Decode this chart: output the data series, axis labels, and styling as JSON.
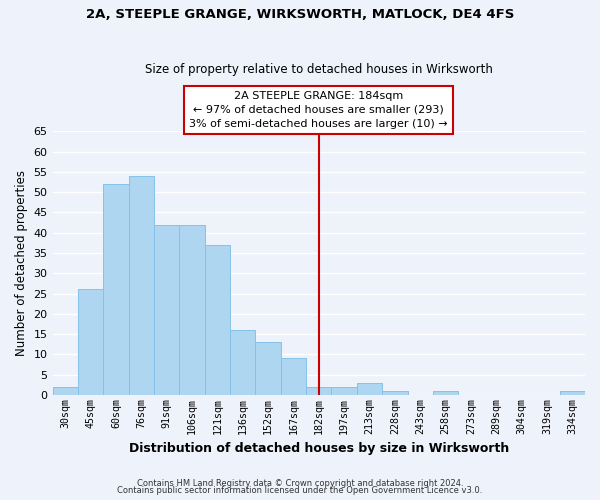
{
  "title": "2A, STEEPLE GRANGE, WIRKSWORTH, MATLOCK, DE4 4FS",
  "subtitle": "Size of property relative to detached houses in Wirksworth",
  "xlabel": "Distribution of detached houses by size in Wirksworth",
  "ylabel": "Number of detached properties",
  "bar_labels": [
    "30sqm",
    "45sqm",
    "60sqm",
    "76sqm",
    "91sqm",
    "106sqm",
    "121sqm",
    "136sqm",
    "152sqm",
    "167sqm",
    "182sqm",
    "197sqm",
    "213sqm",
    "228sqm",
    "243sqm",
    "258sqm",
    "273sqm",
    "289sqm",
    "304sqm",
    "319sqm",
    "334sqm"
  ],
  "bar_values": [
    2,
    26,
    52,
    54,
    42,
    42,
    37,
    16,
    13,
    9,
    2,
    2,
    3,
    1,
    0,
    1,
    0,
    0,
    0,
    0,
    1
  ],
  "bar_color": "#aed6f1",
  "bar_edge_color": "#85c1e9",
  "highlight_index": 10,
  "highlight_line_color": "#cc0000",
  "ylim": [
    0,
    65
  ],
  "yticks": [
    0,
    5,
    10,
    15,
    20,
    25,
    30,
    35,
    40,
    45,
    50,
    55,
    60,
    65
  ],
  "annotation_title": "2A STEEPLE GRANGE: 184sqm",
  "annotation_line1": "← 97% of detached houses are smaller (293)",
  "annotation_line2": "3% of semi-detached houses are larger (10) →",
  "annotation_box_color": "#ffffff",
  "annotation_box_edge": "#cc0000",
  "footer_line1": "Contains HM Land Registry data © Crown copyright and database right 2024.",
  "footer_line2": "Contains public sector information licensed under the Open Government Licence v3.0.",
  "background_color": "#eef2fb",
  "grid_color": "#ffffff"
}
